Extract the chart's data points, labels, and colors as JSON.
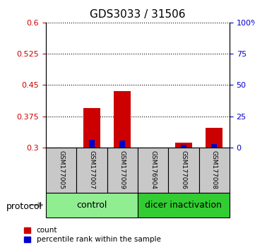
{
  "title": "GDS3033 / 31506",
  "samples": [
    "GSM177005",
    "GSM177007",
    "GSM177009",
    "GSM176904",
    "GSM177006",
    "GSM177008"
  ],
  "red_values": [
    0.3,
    0.395,
    0.435,
    0.3,
    0.312,
    0.347
  ],
  "blue_values": [
    0.3,
    0.319,
    0.317,
    0.3,
    0.307,
    0.308
  ],
  "y_min": 0.3,
  "y_max": 0.6,
  "y_ticks_left": [
    0.3,
    0.375,
    0.45,
    0.525,
    0.6
  ],
  "y_ticks_right": [
    0,
    25,
    50,
    75,
    100
  ],
  "right_y_labels": [
    "0",
    "25",
    "50",
    "75",
    "100%"
  ],
  "bar_color_red": "#CC0000",
  "bar_color_blue": "#0000CC",
  "bg_color_samples": "#C8C8C8",
  "color_control": "#90EE90",
  "color_dicer": "#32CD32",
  "group_label_control": "control",
  "group_label_dicer": "dicer inactivation",
  "protocol_label": "protocol",
  "legend_red": "count",
  "legend_blue": "percentile rank within the sample"
}
